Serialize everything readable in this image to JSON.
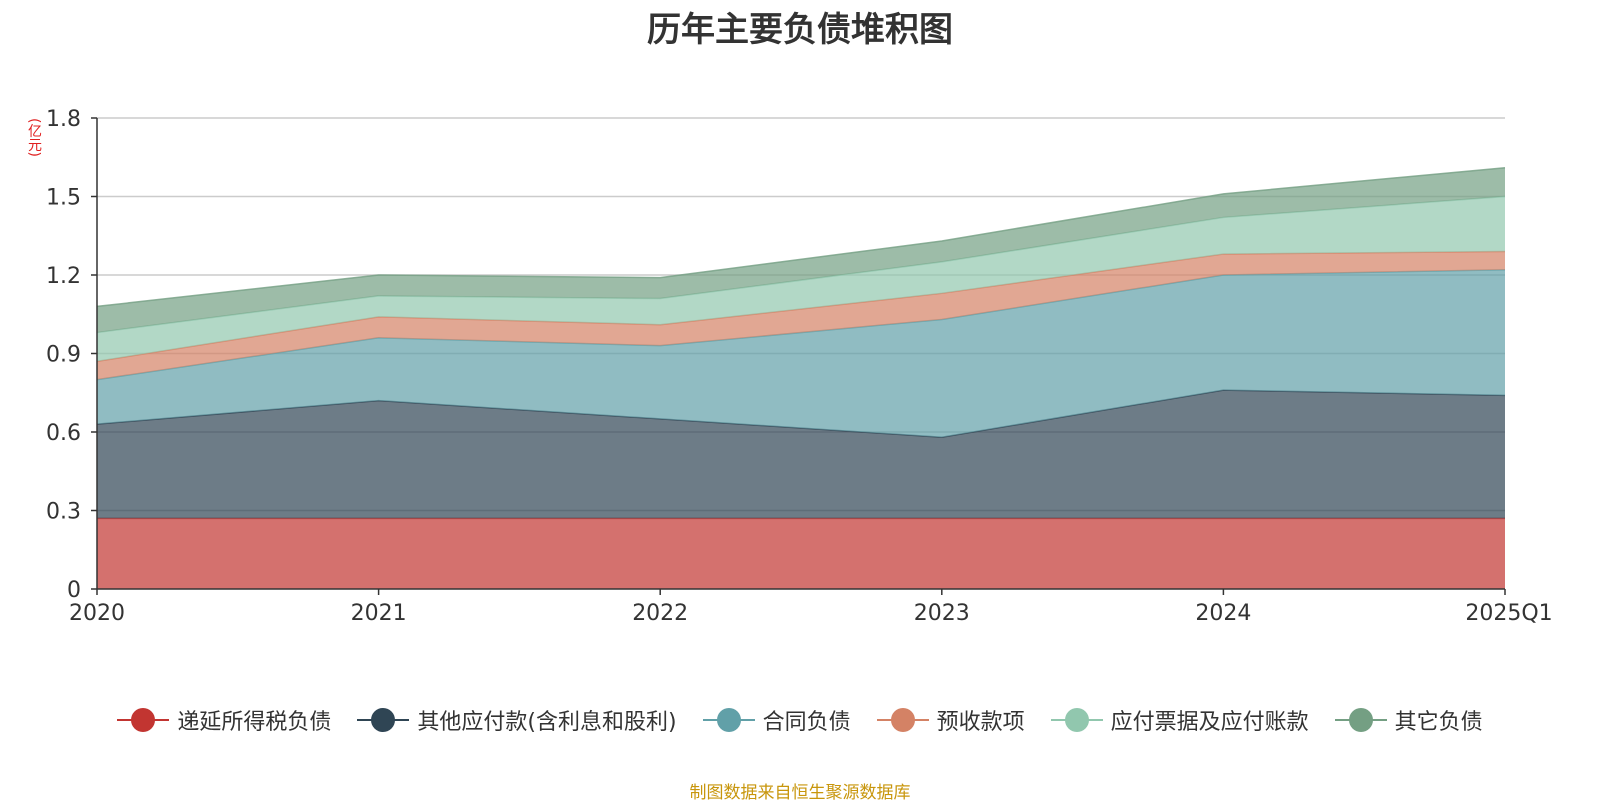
{
  "chart_data": {
    "type": "area",
    "stacked": true,
    "title": "历年主要负债堆积图",
    "unit": "(亿元)",
    "categories": [
      "2020",
      "2021",
      "2022",
      "2023",
      "2024",
      "2025Q1"
    ],
    "ylim": [
      0,
      1.8
    ],
    "yticks": [
      "0",
      "0.3",
      "0.6",
      "0.9",
      "1.2",
      "1.5",
      "1.8"
    ],
    "grid": true,
    "legend_position": "bottom",
    "series": [
      {
        "name": "递延所得税负债",
        "color": "#c23531",
        "values": [
          0.27,
          0.27,
          0.27,
          0.27,
          0.27,
          0.27
        ]
      },
      {
        "name": "其他应付款(含利息和股利)",
        "color": "#2f4554",
        "values": [
          0.36,
          0.45,
          0.38,
          0.31,
          0.49,
          0.47
        ]
      },
      {
        "name": "合同负债",
        "color": "#61a0a8",
        "values": [
          0.17,
          0.24,
          0.28,
          0.45,
          0.44,
          0.48
        ]
      },
      {
        "name": "预收款项",
        "color": "#d48265",
        "values": [
          0.07,
          0.08,
          0.08,
          0.1,
          0.08,
          0.07
        ]
      },
      {
        "name": "应付票据及应付账款",
        "color": "#91c7ae",
        "values": [
          0.11,
          0.08,
          0.1,
          0.12,
          0.14,
          0.21
        ]
      },
      {
        "name": "其它负债",
        "color": "#749f83",
        "values": [
          0.1,
          0.08,
          0.08,
          0.08,
          0.09,
          0.11
        ]
      }
    ]
  },
  "footer": {
    "source": "制图数据来自恒生聚源数据库"
  }
}
